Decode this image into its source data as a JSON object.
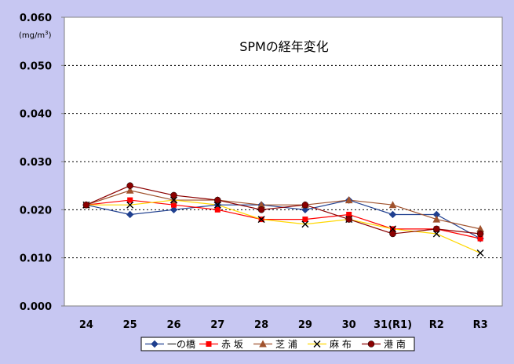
{
  "chart_data": {
    "type": "line",
    "title": "SPMの経年変化",
    "unit_label": "(mg/m",
    "unit_superscript": "3",
    "unit_close": ")",
    "categories": [
      "24",
      "25",
      "26",
      "27",
      "28",
      "29",
      "30",
      "31(R1)",
      "R2",
      "R3"
    ],
    "ylim": [
      0.0,
      0.06
    ],
    "yticks": [
      "0.000",
      "0.010",
      "0.020",
      "0.030",
      "0.040",
      "0.050",
      "0.060"
    ],
    "grid": "horizontal dotted",
    "legend_position": "bottom",
    "series": [
      {
        "name": "一の橋",
        "color": "#1f3f8f",
        "marker": "diamond",
        "values": [
          0.021,
          0.019,
          0.02,
          0.021,
          0.021,
          0.02,
          0.022,
          0.019,
          0.019,
          0.014
        ]
      },
      {
        "name": "赤 坂",
        "color": "#ff0000",
        "marker": "square",
        "values": [
          0.021,
          0.022,
          0.021,
          0.02,
          0.018,
          0.018,
          0.019,
          0.016,
          0.016,
          0.014
        ]
      },
      {
        "name": "芝 浦",
        "color": "#a0522d",
        "marker": "triangle",
        "values": [
          0.021,
          0.024,
          0.022,
          0.022,
          0.021,
          0.021,
          0.022,
          0.021,
          0.018,
          0.016
        ]
      },
      {
        "name": "麻 布",
        "color": "#ffd700",
        "marker": "x",
        "values": [
          0.021,
          0.021,
          0.022,
          0.021,
          0.018,
          0.017,
          0.018,
          0.016,
          0.015,
          0.011
        ]
      },
      {
        "name": "港 南",
        "color": "#8b0000",
        "marker": "circle",
        "values": [
          0.021,
          0.025,
          0.023,
          0.022,
          0.02,
          0.021,
          0.018,
          0.015,
          0.016,
          0.015
        ]
      }
    ]
  }
}
